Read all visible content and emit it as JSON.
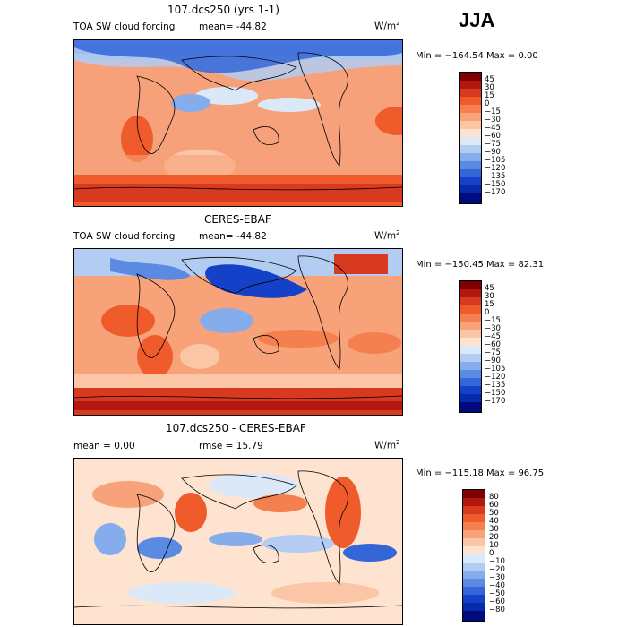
{
  "season": "JJA",
  "panels": [
    {
      "title": "107.dcs250 (yrs 1-1)",
      "variable": "TOA SW cloud forcing",
      "stat": "mean= -44.82",
      "units_base": "W/m",
      "units_exp": "2",
      "minmax": "Min = −164.54 Max =    0.00",
      "colorbar_labels": [
        "45",
        "30",
        "15",
        "0",
        "−15",
        "−30",
        "−45",
        "−60",
        "−75",
        "−90",
        "−105",
        "−120",
        "−135",
        "−150",
        "−170"
      ]
    },
    {
      "title": "CERES-EBAF",
      "variable": "TOA SW cloud forcing",
      "stat": "mean= -44.82",
      "units_base": "W/m",
      "units_exp": "2",
      "minmax": "Min = −150.45 Max =  82.31",
      "colorbar_labels": [
        "45",
        "30",
        "15",
        "0",
        "−15",
        "−30",
        "−45",
        "−60",
        "−75",
        "−90",
        "−105",
        "−120",
        "−135",
        "−150",
        "−170"
      ]
    },
    {
      "title": "107.dcs250 - CERES-EBAF",
      "mean": "mean =    0.00",
      "rmse": "rmse =   15.79",
      "units_base": "W/m",
      "units_exp": "2",
      "minmax": "Min = −115.18 Max =  96.75",
      "colorbar_labels": [
        "80",
        "60",
        "50",
        "40",
        "30",
        "20",
        "10",
        "0",
        "−10",
        "−20",
        "−30",
        "−40",
        "−50",
        "−60",
        "−80"
      ]
    }
  ],
  "colors": {
    "abs_scale": [
      "#7f0000",
      "#b2180e",
      "#d73a1e",
      "#ef5b2a",
      "#f47f4f",
      "#f8a27a",
      "#fbc6a6",
      "#fde3d0",
      "#dbe8f8",
      "#b3cdf2",
      "#86adeb",
      "#5a8ae2",
      "#3566d8",
      "#1540c8",
      "#062aa8",
      "#000b80"
    ],
    "diff_scale": [
      "#7f0000",
      "#b2180e",
      "#d73a1e",
      "#ef5b2a",
      "#f47f4f",
      "#f8a27a",
      "#fbc6a6",
      "#fde3d0",
      "#dbe8f8",
      "#b3cdf2",
      "#86adeb",
      "#5a8ae2",
      "#3566d8",
      "#1540c8",
      "#062aa8",
      "#000b80"
    ]
  }
}
